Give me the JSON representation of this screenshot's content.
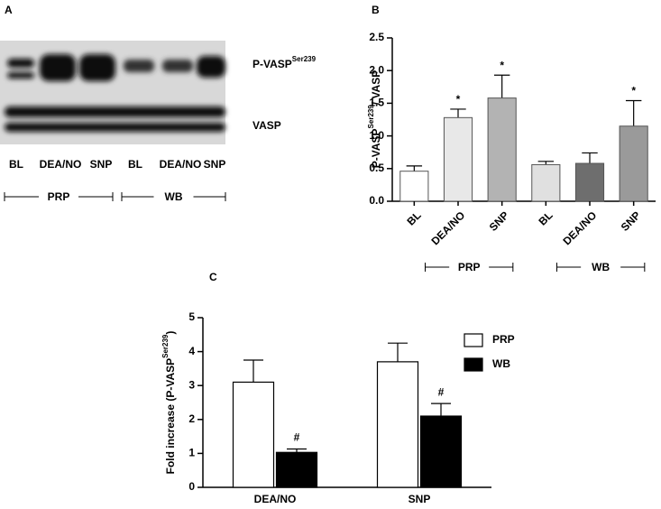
{
  "blot": {
    "panel_label": "A",
    "band_labels": [
      {
        "text": "P-VASP",
        "superscript": "Ser239"
      },
      {
        "text": "VASP"
      }
    ],
    "lanes": [
      "BL",
      "DEA/NO",
      "SNP",
      "BL",
      "DEA/NO",
      "SNP"
    ],
    "groups": [
      "PRP",
      "WB"
    ]
  },
  "chart_data": [
    {
      "type": "bar",
      "panel_label": "B",
      "y_label": {
        "text": "P-VASP",
        "superscript": "Ser239",
        "suffix": "/ VASP"
      },
      "categories": [
        "BL",
        "DEA/NO",
        "SNP",
        "BL",
        "DEA/NO",
        "SNP"
      ],
      "values": [
        0.46,
        1.28,
        1.58,
        0.56,
        0.58,
        1.15
      ],
      "errors": [
        0.08,
        0.13,
        0.35,
        0.05,
        0.16,
        0.39
      ],
      "colors": [
        "#ffffff",
        "#e8e8e8",
        "#b3b3b3",
        "#e0e0e0",
        "#6e6e6e",
        "#9a9a9a"
      ],
      "markers": [
        null,
        "*",
        "*",
        null,
        null,
        "*"
      ],
      "groups": [
        "PRP",
        "WB"
      ],
      "ylim": [
        0,
        2.5
      ],
      "yticks": [
        {
          "value": 0,
          "label": "0.0"
        },
        0.5,
        {
          "value": 1,
          "label": "1.0"
        },
        1.5,
        {
          "value": 2,
          "label": "2.0"
        },
        2.5
      ]
    },
    {
      "type": "grouped_bar",
      "panel_label": "C",
      "y_label": {
        "text": "Fold increase (P-VASP",
        "superscript": "Ser239",
        "suffix": ")"
      },
      "categories": [
        "DEA/NO",
        "SNP"
      ],
      "series": [
        {
          "name": "PRP",
          "color": "#ffffff",
          "values": [
            3.1,
            3.7
          ],
          "errors": [
            0.65,
            0.55
          ]
        },
        {
          "name": "WB",
          "color": "#000000",
          "values": [
            1.03,
            2.1
          ],
          "errors": [
            0.1,
            0.37
          ],
          "markers": [
            "#",
            "#"
          ]
        }
      ],
      "ylim": [
        0,
        5
      ],
      "yticks": [
        0,
        1,
        2,
        3,
        4,
        5
      ]
    }
  ]
}
